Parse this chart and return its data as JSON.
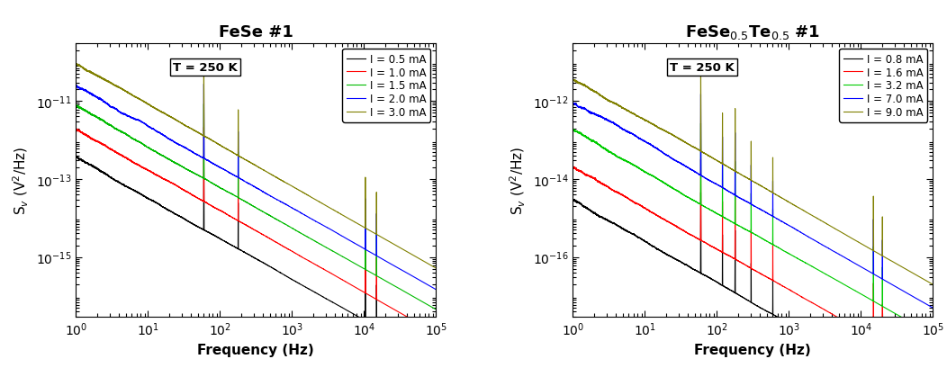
{
  "panel1_title": "FeSe #1",
  "xlabel": "Frequency (Hz)",
  "ylabel1": "S$_v$ (V$^2$/Hz)",
  "ylabel2": "S$_v$ (V$^2$/Hz)",
  "temp_label": "T = 250 K",
  "panel1": {
    "currents": [
      "I = 0.5 mA",
      "I = 1.0 mA",
      "I = 1.5 mA",
      "I = 2.0 mA",
      "I = 3.0 mA"
    ],
    "colors": [
      "#000000",
      "#ff0000",
      "#00bb00",
      "#0000ff",
      "#808000"
    ],
    "amplitudes": [
      4e-13,
      2e-12,
      8e-12,
      2.5e-11,
      9e-11
    ],
    "alpha_1f": 1.05,
    "ylim": [
      3e-17,
      3e-10
    ],
    "yticks": [
      1e-15,
      1e-13,
      1e-11
    ],
    "spike_freqs": [
      60,
      180,
      10500,
      15000
    ],
    "spike_mults": [
      80,
      15,
      20,
      12
    ]
  },
  "panel2": {
    "currents": [
      "I = 0.8 mA",
      "I = 1.6 mA",
      "I = 3.2 mA",
      "I = 7.0 mA",
      "I = 9.0 mA"
    ],
    "colors": [
      "#000000",
      "#ff0000",
      "#00cc00",
      "#0000ff",
      "#808000"
    ],
    "amplitudes": [
      3e-15,
      2e-14,
      1.8e-13,
      9e-13,
      3.5e-12
    ],
    "alpha_1f": 1.05,
    "ylim": [
      3e-18,
      3e-11
    ],
    "yticks": [
      1e-16,
      1e-14,
      1e-12
    ],
    "spike_freqs": [
      60,
      120,
      180,
      300,
      600,
      15000,
      20000
    ],
    "spike_mults": [
      120,
      20,
      40,
      10,
      8,
      25,
      10
    ]
  },
  "xlim": [
    1.0,
    100000.0
  ],
  "freq_min": 1.0,
  "freq_max": 100000.0,
  "n_points": 5000,
  "fig_width": 10.52,
  "fig_height": 4.1,
  "dpi": 100
}
